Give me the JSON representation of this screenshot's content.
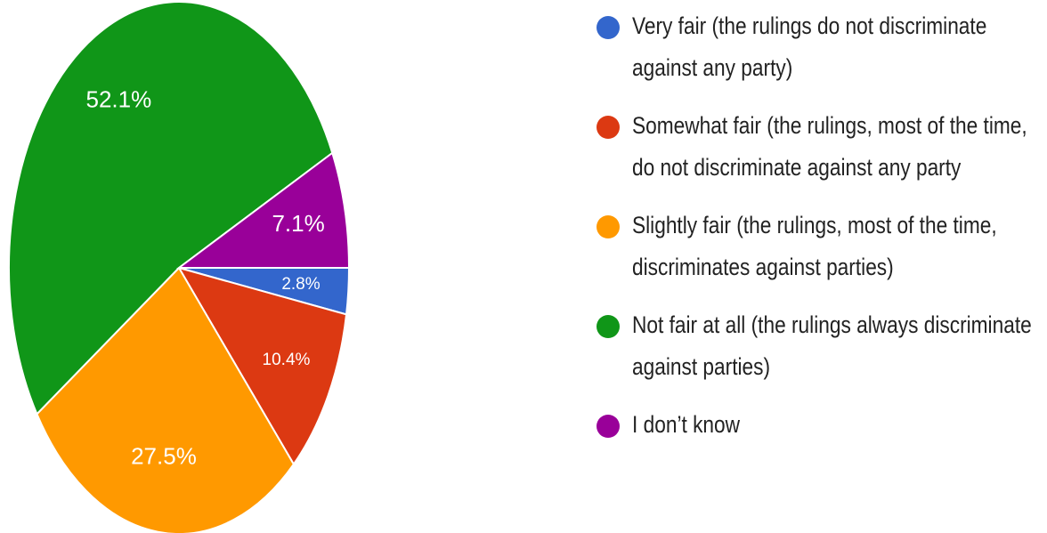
{
  "chart_data": {
    "type": "pie",
    "categories": [
      "Very fair (the rulings do not discriminate against any party)",
      "Somewhat fair (the rulings, most of the time, do not discriminate against any party",
      "Slightly fair (the rulings, most of the time, discriminates against parties)",
      "Not fair at all (the rulings always discriminate against parties)",
      "I don’t know"
    ],
    "values": [
      2.8,
      10.4,
      27.5,
      52.1,
      7.1
    ],
    "value_labels": [
      "2.8%",
      "10.4%",
      "27.5%",
      "52.1%",
      "7.1%"
    ],
    "colors": [
      "#3366cc",
      "#dc3912",
      "#ff9900",
      "#109618",
      "#990099"
    ]
  }
}
